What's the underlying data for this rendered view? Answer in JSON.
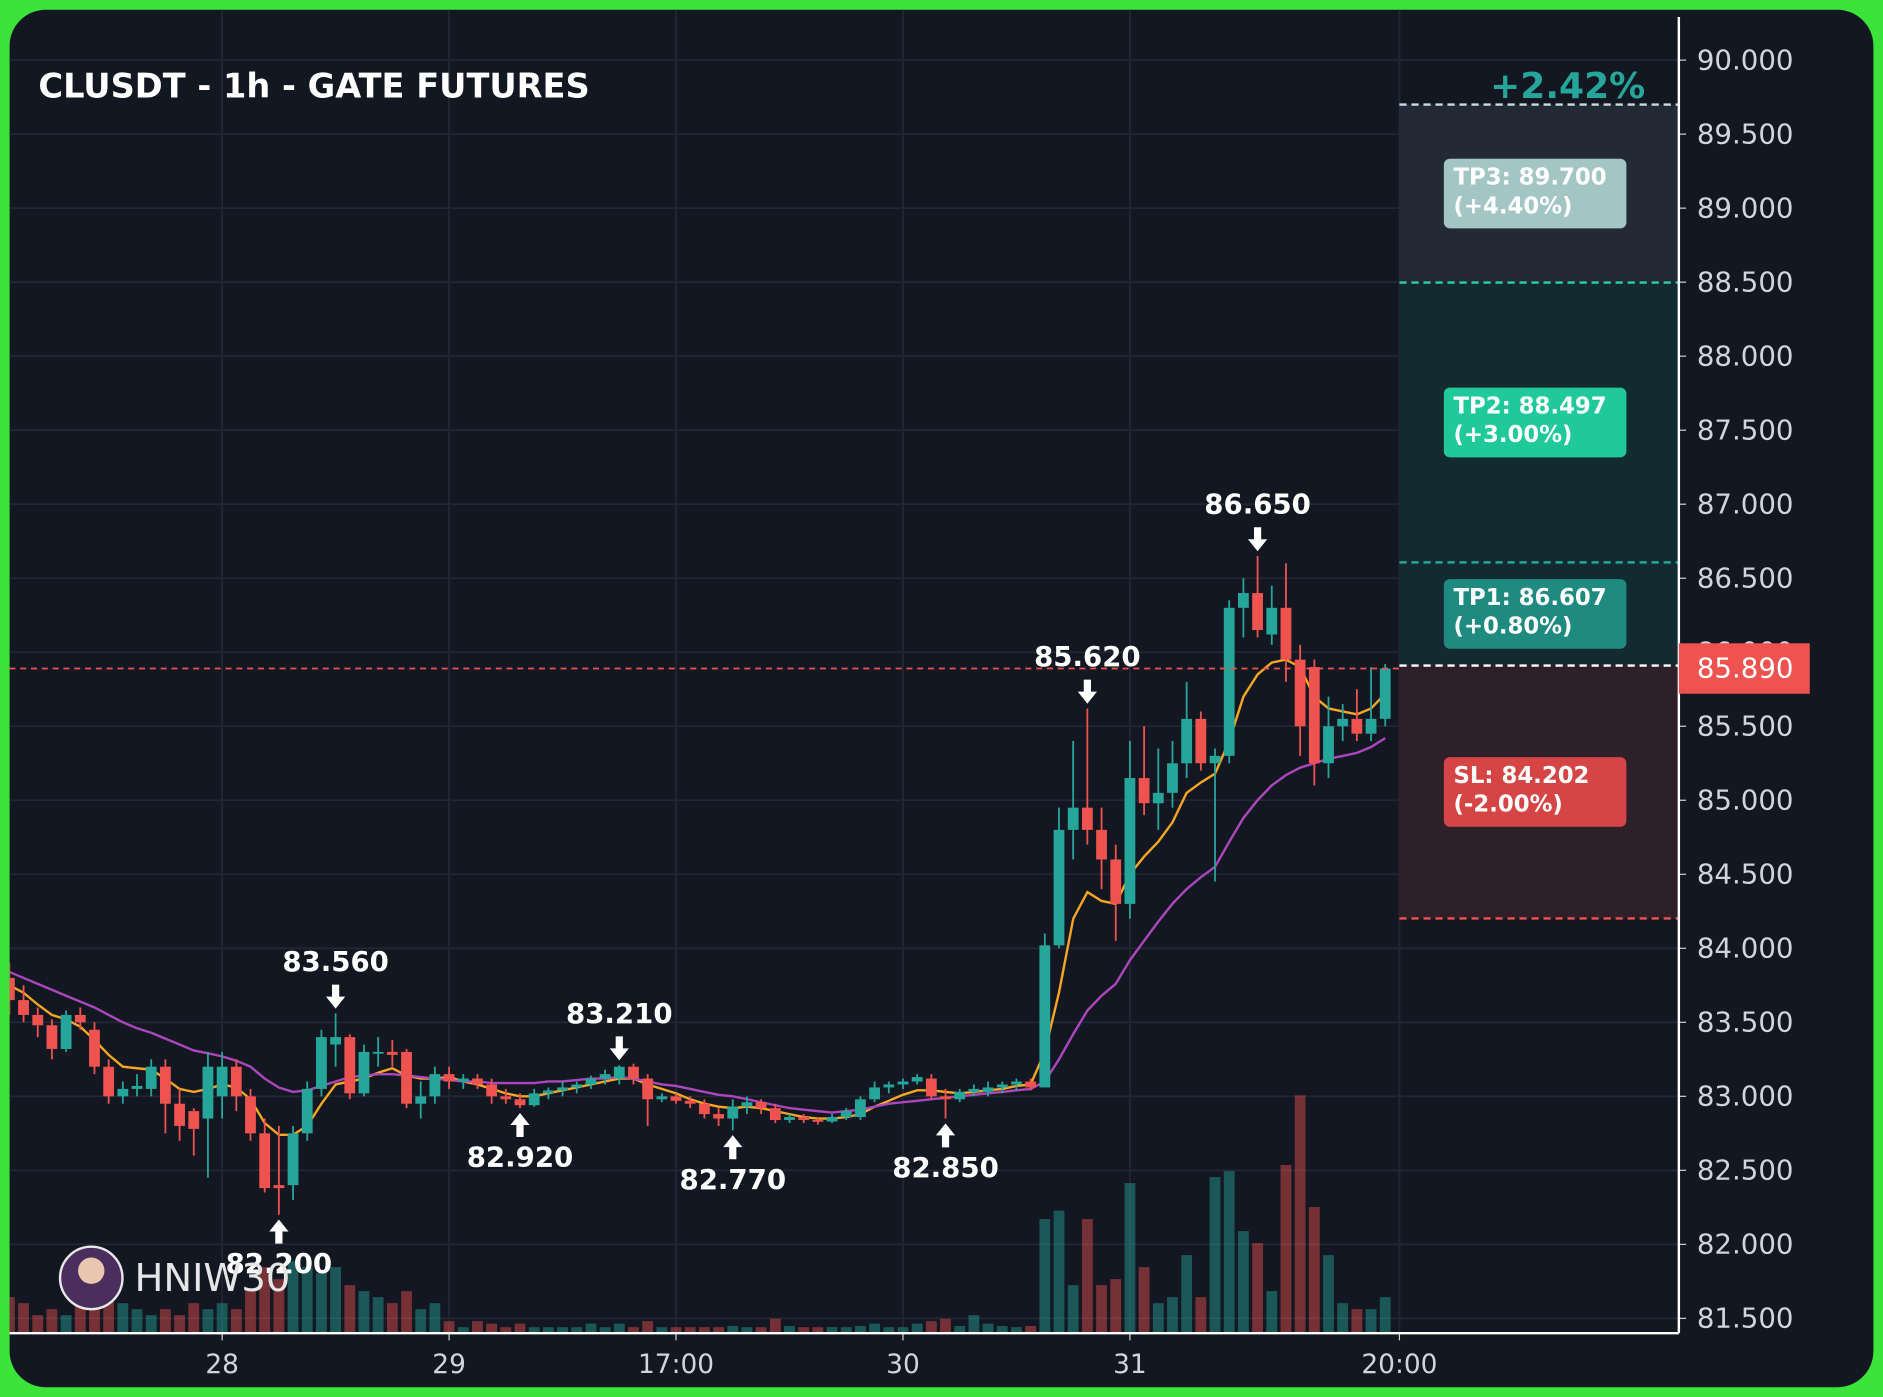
{
  "chart_data": {
    "type": "candlestick",
    "title": "CLUSDT - 1h - GATE FUTURES",
    "watermark": "HNIW30",
    "pnl": "+2.42%",
    "up_color": "#26a69a",
    "down_color": "#ef5350",
    "xlim": [
      0,
      117.7
    ],
    "ylim": [
      81.4,
      90.34
    ],
    "vlim": [
      0,
      400
    ],
    "grid": true,
    "xticks": [
      {
        "value": 15,
        "label": "28"
      },
      {
        "value": 31,
        "label": "29"
      },
      {
        "value": 47,
        "label": "17:00"
      },
      {
        "value": 63,
        "label": "30"
      },
      {
        "value": 79,
        "label": "31"
      },
      {
        "value": 98,
        "label": "20:00"
      }
    ],
    "yticks": [
      {
        "value": 81.5,
        "label": "81.500"
      },
      {
        "value": 82,
        "label": "82.000"
      },
      {
        "value": 82.5,
        "label": "82.500"
      },
      {
        "value": 83,
        "label": "83.000"
      },
      {
        "value": 83.5,
        "label": "83.500"
      },
      {
        "value": 84,
        "label": "84.000"
      },
      {
        "value": 84.5,
        "label": "84.500"
      },
      {
        "value": 85,
        "label": "85.000"
      },
      {
        "value": 85.5,
        "label": "85.500"
      },
      {
        "value": 86,
        "label": "86.000"
      },
      {
        "value": 86.5,
        "label": "86.500"
      },
      {
        "value": 87,
        "label": "87.000"
      },
      {
        "value": 87.5,
        "label": "87.500"
      },
      {
        "value": 88,
        "label": "88.000"
      },
      {
        "value": 88.5,
        "label": "88.500"
      },
      {
        "value": 89,
        "label": "89.000"
      },
      {
        "value": 89.5,
        "label": "89.500"
      },
      {
        "value": 90,
        "label": "90.000"
      }
    ],
    "open": [
      83.8,
      83.65,
      83.55,
      83.48,
      83.32,
      83.55,
      83.45,
      83.2,
      83.0,
      83.05,
      83.05,
      83.2,
      82.95,
      82.9,
      82.85,
      83.0,
      83.2,
      83.0,
      82.75,
      82.4,
      82.4,
      82.75,
      83.05,
      83.35,
      83.4,
      83.02,
      83.3,
      83.3,
      83.3,
      82.95,
      83.0,
      83.15,
      83.1,
      83.12,
      83.08,
      83.0,
      82.98,
      82.94,
      83.02,
      83.04,
      83.06,
      83.08,
      83.12,
      83.12,
      83.2,
      83.12,
      82.98,
      83.0,
      82.97,
      82.95,
      82.88,
      82.85,
      82.93,
      82.96,
      82.92,
      82.84,
      82.86,
      82.84,
      82.83,
      82.86,
      82.86,
      82.98,
      83.06,
      83.08,
      83.1,
      83.12,
      83.0,
      82.98,
      83.03,
      83.03,
      83.06,
      83.08,
      83.1,
      83.06,
      84.02,
      84.8,
      84.95,
      84.8,
      84.6,
      84.3,
      85.15,
      84.98,
      85.05,
      85.25,
      85.55,
      85.25,
      85.3,
      86.3,
      86.4,
      86.12,
      86.3,
      85.95,
      85.9,
      85.25,
      85.5,
      85.55,
      85.45,
      85.55
    ],
    "high": [
      83.9,
      83.75,
      83.6,
      83.52,
      83.58,
      83.6,
      83.5,
      83.25,
      83.1,
      83.15,
      83.25,
      83.25,
      83.05,
      82.92,
      83.3,
      83.3,
      83.25,
      83.05,
      82.85,
      82.8,
      82.8,
      83.1,
      83.45,
      83.56,
      83.42,
      83.35,
      83.4,
      83.38,
      83.32,
      83.1,
      83.2,
      83.2,
      83.15,
      83.15,
      83.12,
      83.05,
      83.02,
      83.05,
      83.06,
      83.1,
      83.1,
      83.14,
      83.18,
      83.21,
      83.22,
      83.15,
      83.02,
      83.02,
      83.0,
      82.98,
      82.92,
      82.98,
      83.0,
      82.98,
      82.95,
      82.88,
      82.88,
      82.86,
      82.88,
      82.92,
      83.0,
      83.1,
      83.1,
      83.12,
      83.15,
      83.15,
      83.05,
      83.05,
      83.08,
      83.1,
      83.1,
      83.12,
      83.12,
      84.1,
      84.95,
      85.4,
      85.62,
      84.95,
      84.7,
      85.4,
      85.5,
      85.35,
      85.4,
      85.8,
      85.6,
      85.35,
      86.35,
      86.5,
      86.65,
      86.45,
      86.6,
      86.05,
      85.95,
      85.7,
      85.65,
      85.75,
      85.9,
      85.92
    ],
    "low": [
      83.55,
      83.5,
      83.4,
      83.25,
      83.3,
      83.45,
      83.15,
      82.95,
      82.95,
      83.0,
      83.0,
      82.75,
      82.7,
      82.6,
      82.45,
      82.85,
      82.9,
      82.7,
      82.35,
      82.2,
      82.3,
      82.7,
      83.0,
      83.2,
      82.98,
      83.0,
      83.2,
      83.2,
      82.92,
      82.85,
      82.95,
      83.05,
      83.05,
      83.05,
      82.95,
      82.95,
      82.92,
      82.93,
      82.98,
      83.0,
      83.02,
      83.05,
      83.08,
      83.08,
      83.08,
      82.8,
      82.96,
      82.95,
      82.92,
      82.85,
      82.8,
      82.77,
      82.88,
      82.88,
      82.82,
      82.82,
      82.82,
      82.81,
      82.82,
      82.84,
      82.84,
      82.96,
      83.02,
      83.05,
      83.08,
      82.98,
      82.85,
      82.96,
      83.0,
      83.0,
      83.02,
      83.04,
      83.04,
      83.06,
      84.0,
      84.6,
      84.7,
      84.4,
      84.05,
      84.2,
      84.9,
      84.8,
      84.95,
      85.15,
      85.2,
      84.45,
      85.25,
      86.1,
      86.1,
      86.05,
      85.8,
      85.3,
      85.1,
      85.15,
      85.4,
      85.4,
      85.4,
      85.5
    ],
    "close": [
      83.65,
      83.55,
      83.48,
      83.32,
      83.55,
      83.5,
      83.2,
      83.0,
      83.05,
      83.07,
      83.2,
      82.95,
      82.8,
      82.78,
      83.2,
      83.2,
      83.0,
      82.75,
      82.38,
      82.38,
      82.75,
      83.05,
      83.4,
      83.4,
      83.02,
      83.3,
      83.3,
      83.28,
      82.95,
      83.0,
      83.15,
      83.1,
      83.12,
      83.08,
      83.0,
      82.98,
      82.94,
      83.02,
      83.04,
      83.06,
      83.08,
      83.12,
      83.15,
      83.2,
      83.12,
      82.98,
      83.0,
      82.97,
      82.95,
      82.88,
      82.85,
      82.93,
      82.96,
      82.92,
      82.84,
      82.86,
      82.84,
      82.83,
      82.86,
      82.9,
      82.98,
      83.06,
      83.08,
      83.1,
      83.13,
      83.0,
      82.98,
      83.03,
      83.05,
      83.06,
      83.08,
      83.1,
      83.06,
      84.02,
      84.8,
      84.95,
      84.8,
      84.6,
      84.3,
      85.15,
      84.98,
      85.05,
      85.25,
      85.55,
      85.25,
      85.3,
      86.3,
      86.4,
      86.15,
      86.3,
      85.95,
      85.5,
      85.25,
      85.5,
      85.55,
      85.45,
      85.55,
      85.89
    ],
    "volume": [
      30,
      25,
      15,
      20,
      15,
      25,
      30,
      40,
      25,
      20,
      15,
      20,
      15,
      25,
      20,
      25,
      20,
      35,
      55,
      45,
      60,
      55,
      50,
      55,
      40,
      35,
      30,
      25,
      35,
      20,
      25,
      10,
      5,
      10,
      8,
      5,
      8,
      5,
      5,
      5,
      5,
      8,
      5,
      8,
      5,
      10,
      5,
      5,
      5,
      5,
      5,
      6,
      5,
      5,
      12,
      6,
      5,
      5,
      5,
      5,
      6,
      8,
      5,
      5,
      8,
      10,
      12,
      6,
      15,
      8,
      6,
      5,
      6,
      95,
      102,
      40,
      95,
      40,
      45,
      125,
      55,
      25,
      30,
      65,
      30,
      130,
      135,
      85,
      75,
      35,
      140,
      198,
      105,
      65,
      25,
      20,
      20,
      30
    ],
    "ma_lines": [
      {
        "color": "#f5a623",
        "values": [
          83.75,
          83.7,
          83.62,
          83.55,
          83.52,
          83.47,
          83.38,
          83.28,
          83.2,
          83.19,
          83.18,
          83.12,
          83.05,
          83.03,
          83.05,
          83.08,
          83.06,
          82.98,
          82.82,
          82.74,
          82.74,
          82.8,
          82.95,
          83.08,
          83.1,
          83.12,
          83.16,
          83.19,
          83.14,
          83.12,
          83.12,
          83.13,
          83.1,
          83.08,
          83.05,
          83.02,
          83.0,
          83.0,
          83.02,
          83.04,
          83.06,
          83.08,
          83.1,
          83.12,
          83.12,
          83.08,
          83.05,
          83.02,
          82.98,
          82.95,
          82.93,
          82.92,
          82.93,
          82.92,
          82.9,
          82.88,
          82.86,
          82.85,
          82.85,
          82.86,
          82.88,
          82.93,
          82.97,
          83.01,
          83.04,
          83.04,
          83.03,
          83.02,
          83.03,
          83.04,
          83.05,
          83.07,
          83.08,
          83.3,
          83.7,
          84.2,
          84.38,
          84.32,
          84.3,
          84.5,
          84.62,
          84.72,
          84.85,
          85.05,
          85.12,
          85.18,
          85.4,
          85.7,
          85.85,
          85.93,
          85.95,
          85.9,
          85.7,
          85.62,
          85.6,
          85.58,
          85.62,
          85.72
        ]
      },
      {
        "color": "#ab47bc",
        "values": [
          83.84,
          83.8,
          83.76,
          83.72,
          83.68,
          83.64,
          83.6,
          83.55,
          83.5,
          83.46,
          83.43,
          83.39,
          83.35,
          83.31,
          83.29,
          83.27,
          83.24,
          83.2,
          83.12,
          83.06,
          83.03,
          83.04,
          83.07,
          83.1,
          83.13,
          83.14,
          83.15,
          83.15,
          83.14,
          83.13,
          83.12,
          83.11,
          83.1,
          83.1,
          83.09,
          83.09,
          83.09,
          83.09,
          83.1,
          83.1,
          83.11,
          83.12,
          83.12,
          83.13,
          83.12,
          83.1,
          83.08,
          83.07,
          83.05,
          83.03,
          83.01,
          83.0,
          82.98,
          82.96,
          82.94,
          82.92,
          82.91,
          82.9,
          82.89,
          82.9,
          82.91,
          82.93,
          82.95,
          82.96,
          82.97,
          82.98,
          82.99,
          83.0,
          83.01,
          83.02,
          83.03,
          83.04,
          83.05,
          83.1,
          83.25,
          83.42,
          83.58,
          83.68,
          83.76,
          83.92,
          84.05,
          84.18,
          84.3,
          84.4,
          84.48,
          84.55,
          84.72,
          84.88,
          85.0,
          85.1,
          85.17,
          85.22,
          85.25,
          85.28,
          85.3,
          85.32,
          85.36,
          85.42
        ]
      }
    ],
    "markers": [
      {
        "candle": 19,
        "kind": "low",
        "price": {
          "value": 82.2,
          "label": "82.200"
        }
      },
      {
        "candle": 23,
        "kind": "high",
        "price": {
          "value": 83.56,
          "label": "83.560"
        }
      },
      {
        "candle": 36,
        "kind": "low",
        "price": {
          "value": 82.92,
          "label": "82.920"
        }
      },
      {
        "candle": 43,
        "kind": "high",
        "price": {
          "value": 83.21,
          "label": "83.210"
        }
      },
      {
        "candle": 51,
        "kind": "low",
        "price": {
          "value": 82.77,
          "label": "82.770"
        }
      },
      {
        "candle": 66,
        "kind": "low",
        "price": {
          "value": 82.85,
          "label": "82.850"
        }
      },
      {
        "candle": 76,
        "kind": "high",
        "price": {
          "value": 85.62,
          "label": "85.620"
        }
      },
      {
        "candle": 88,
        "kind": "high",
        "price": {
          "value": 86.65,
          "label": "86.650"
        }
      }
    ],
    "last_price": {
      "value": 85.89,
      "label": "85.890"
    },
    "position": {
      "from": 98,
      "entry": 85.91,
      "targets": [
        {
          "label": "TP3: 89.700",
          "change": "(+4.40%)",
          "price": 89.7,
          "color": "#a3c6c4",
          "line": "#c9dddd",
          "zone": "#232a35"
        },
        {
          "label": "TP2: 88.497",
          "change": "(+3.00%)",
          "price": 88.497,
          "color": "#1fc99a",
          "line": "#2bd0a5",
          "zone": "#132a31"
        },
        {
          "label": "TP1: 86.607",
          "change": "(+0.80%)",
          "price": 86.607,
          "color": "#1f8a80",
          "line": "#26a69a",
          "zone": "#132a31"
        }
      ],
      "stop": {
        "label": "SL: 84.202",
        "change": "(-2.00%)",
        "price": 84.202,
        "color": "#d64545",
        "line": "#ef5350",
        "zone": "#2e2029"
      }
    }
  }
}
